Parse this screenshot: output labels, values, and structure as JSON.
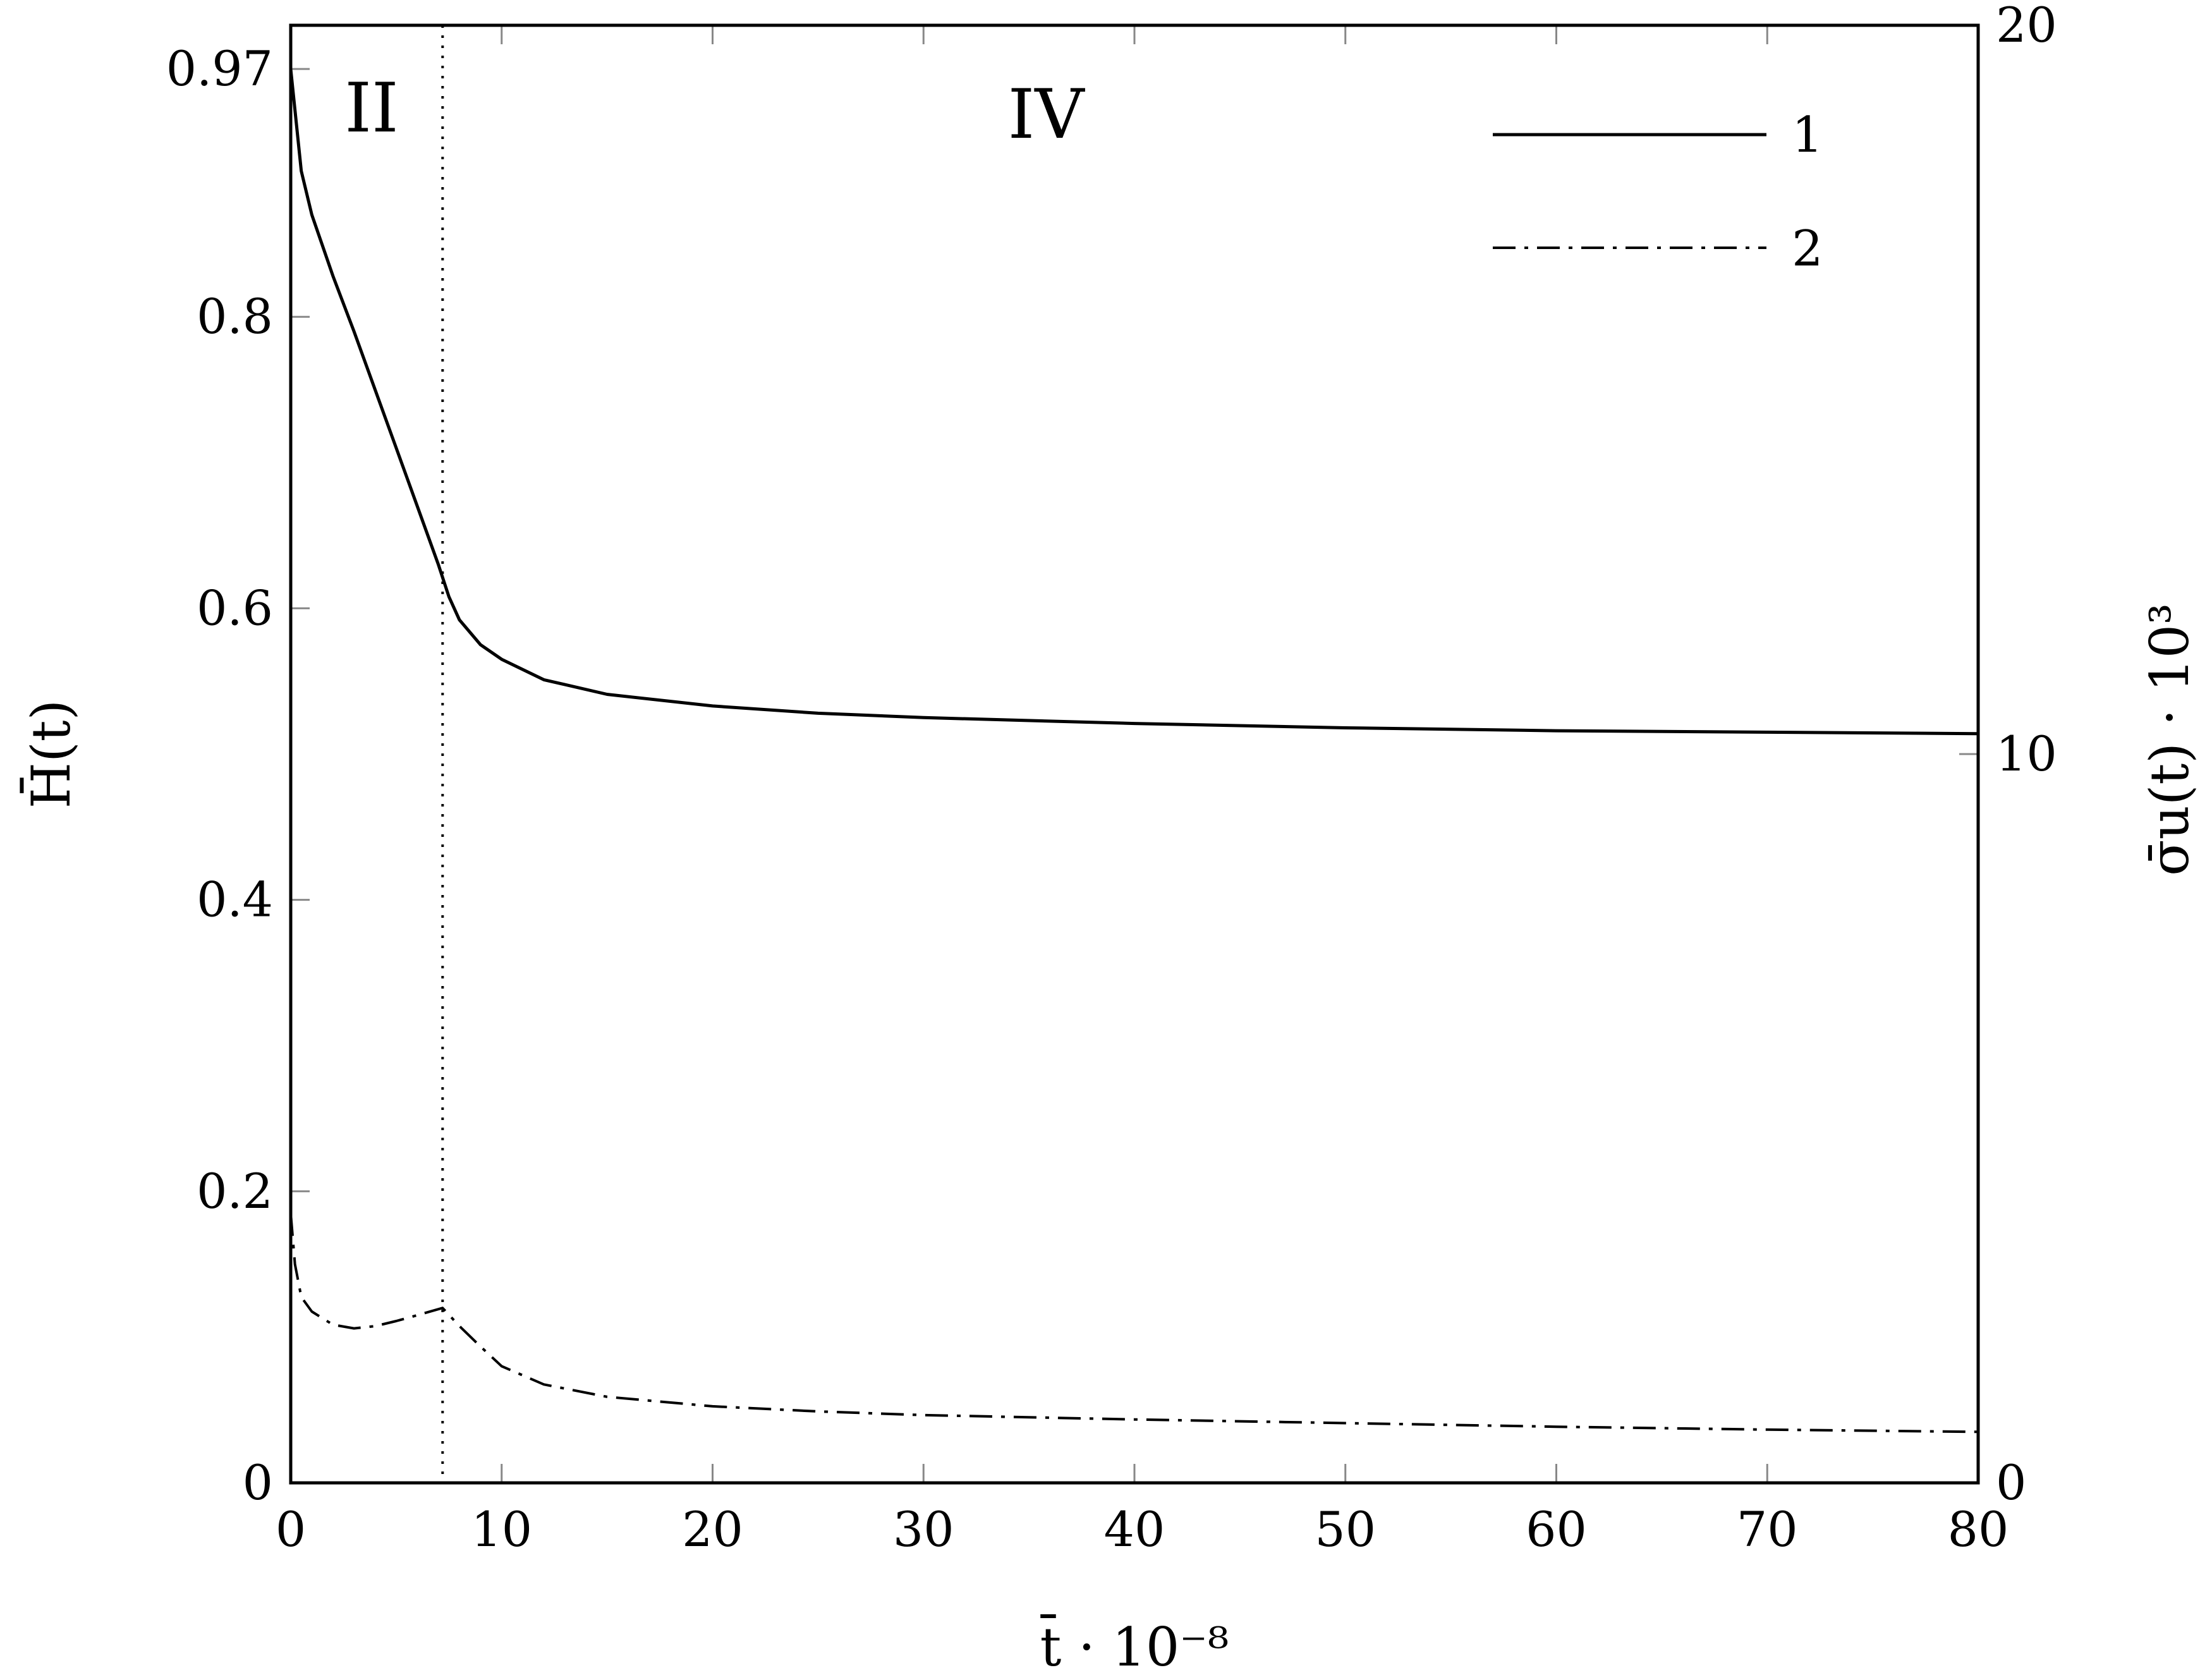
{
  "chart_data": {
    "type": "line",
    "xlabel": "t̄ · 10⁻⁸",
    "ylabel_left": "H̄(t)",
    "ylabel_right": "σ̄u(t) · 10³",
    "xlim": [
      0,
      80
    ],
    "ylim_left": [
      0,
      1.0
    ],
    "ylim_right": [
      0,
      20
    ],
    "x_ticks": [
      "0",
      "10",
      "20",
      "30",
      "40",
      "50",
      "60",
      "70",
      "80"
    ],
    "y_ticks_left": [
      "0",
      "0.2",
      "0.4",
      "0.6",
      "0.8",
      "0.97"
    ],
    "y_ticks_right": [
      "0",
      "10",
      "20"
    ],
    "grid": false,
    "legend_position": "top-right",
    "vertical_marker_x": 7.2,
    "region_labels": [
      "II",
      "IV"
    ],
    "series": [
      {
        "name": "1",
        "axis": "left",
        "style": "solid",
        "x": [
          0,
          0.5,
          1,
          2,
          3,
          4,
          5,
          6,
          7,
          7.5,
          8,
          9,
          10,
          12,
          15,
          20,
          25,
          30,
          40,
          50,
          60,
          70,
          80
        ],
        "y": [
          0.97,
          0.9,
          0.87,
          0.828,
          0.79,
          0.75,
          0.71,
          0.67,
          0.63,
          0.608,
          0.592,
          0.575,
          0.565,
          0.551,
          0.541,
          0.533,
          0.528,
          0.525,
          0.521,
          0.518,
          0.516,
          0.515,
          0.514
        ]
      },
      {
        "name": "2",
        "axis": "right",
        "style": "dashdot",
        "x": [
          0,
          0.2,
          0.5,
          1,
          2,
          3,
          4,
          5,
          6,
          7.2,
          8,
          9,
          10,
          12,
          15,
          20,
          25,
          30,
          40,
          50,
          60,
          70,
          80
        ],
        "y": [
          3.7,
          3.0,
          2.55,
          2.35,
          2.17,
          2.12,
          2.15,
          2.22,
          2.3,
          2.4,
          2.15,
          1.87,
          1.6,
          1.35,
          1.18,
          1.05,
          0.98,
          0.93,
          0.87,
          0.82,
          0.77,
          0.73,
          0.7
        ]
      }
    ]
  }
}
